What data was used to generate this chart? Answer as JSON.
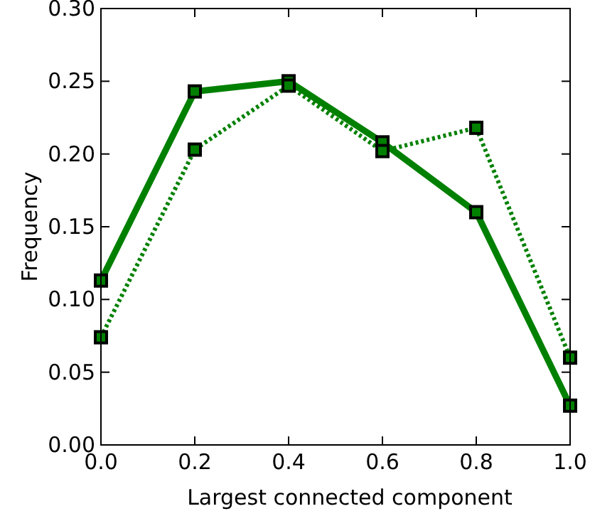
{
  "chart_data": {
    "type": "line",
    "xlabel": "Largest connected component",
    "ylabel": "Frequency",
    "x": [
      0,
      0.2,
      0.4,
      0.6,
      0.8,
      1.0
    ],
    "xlim": [
      0,
      1
    ],
    "ylim": [
      0,
      0.3
    ],
    "xticks": [
      {
        "value": 0,
        "label": "0.0"
      },
      0.2,
      0.4,
      0.6,
      0.8,
      {
        "value": 1,
        "label": "1.0"
      }
    ],
    "yticks": [
      {
        "value": 0,
        "label": "0.00"
      },
      0.05,
      {
        "value": 0.1,
        "label": "0.10"
      },
      0.15,
      {
        "value": 0.2,
        "label": "0.20"
      },
      0.25,
      {
        "value": 0.3,
        "label": "0.30"
      }
    ],
    "marker": "square",
    "grid": false,
    "series": [
      {
        "color": "#008000",
        "line_style": "solid",
        "values": [
          0.113,
          0.243,
          0.25,
          0.208,
          0.16,
          0.027
        ]
      },
      {
        "color": "#008000",
        "line_style": "dotted",
        "values": [
          0.074,
          0.203,
          0.247,
          0.202,
          0.218,
          0.06
        ]
      }
    ]
  }
}
